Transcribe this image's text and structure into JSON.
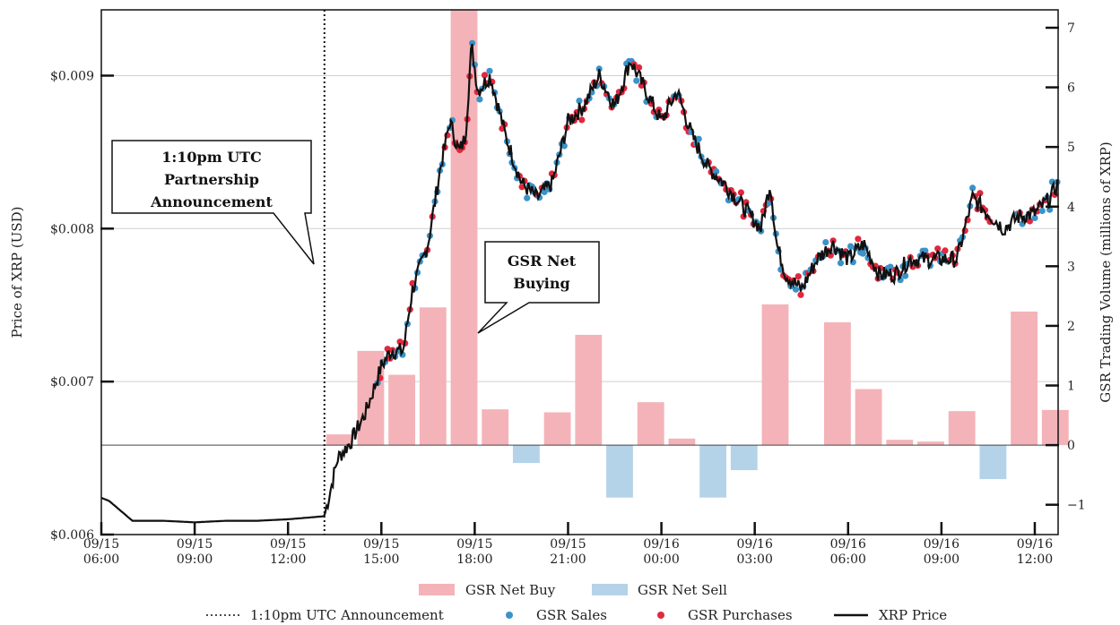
{
  "chart_data": {
    "type": "bar+line+scatter",
    "y_left": {
      "label": "Price of XRP (USD)",
      "range": [
        0.006,
        0.00943
      ],
      "ticks": [
        0.006,
        0.007,
        0.008,
        0.009
      ],
      "tick_labels": [
        "$0.006",
        "$0.007",
        "$0.008",
        "$0.009"
      ]
    },
    "y_right": {
      "label": "GSR Trading Volume (millions of XRP)",
      "range": [
        -1.5,
        7.3
      ],
      "ticks": [
        -1,
        0,
        1,
        2,
        3,
        4,
        5,
        6,
        7
      ],
      "tick_labels": [
        "−1",
        "0",
        "1",
        "2",
        "3",
        "4",
        "5",
        "6",
        "7"
      ]
    },
    "x_axis": {
      "range_hours": [
        6.0,
        36.75
      ],
      "ticks_hours": [
        6,
        9,
        12,
        15,
        18,
        21,
        24,
        27,
        30,
        33,
        36
      ],
      "tick_labels": [
        [
          "09/15",
          "06:00"
        ],
        [
          "09/15",
          "09:00"
        ],
        [
          "09/15",
          "12:00"
        ],
        [
          "09/15",
          "15:00"
        ],
        [
          "09/15",
          "18:00"
        ],
        [
          "09/15",
          "21:00"
        ],
        [
          "09/16",
          "00:00"
        ],
        [
          "09/16",
          "03:00"
        ],
        [
          "09/16",
          "06:00"
        ],
        [
          "09/16",
          "09:00"
        ],
        [
          "09/16",
          "12:00"
        ]
      ]
    },
    "announcement_time": 13.17,
    "bars_net_buy": [
      {
        "t": 13.17,
        "v": 0.18
      },
      {
        "t": 14.17,
        "v": 1.58
      },
      {
        "t": 15.17,
        "v": 1.18
      },
      {
        "t": 16.17,
        "v": 2.31
      },
      {
        "t": 17.17,
        "v": 7.3
      },
      {
        "t": 18.17,
        "v": 0.6
      },
      {
        "t": 20.17,
        "v": 0.55
      },
      {
        "t": 21.17,
        "v": 1.85
      },
      {
        "t": 23.17,
        "v": 0.72
      },
      {
        "t": 24.17,
        "v": 0.11
      },
      {
        "t": 27.17,
        "v": 2.36
      },
      {
        "t": 29.17,
        "v": 2.06
      },
      {
        "t": 30.17,
        "v": 0.94
      },
      {
        "t": 31.17,
        "v": 0.09
      },
      {
        "t": 32.17,
        "v": 0.06
      },
      {
        "t": 33.17,
        "v": 0.57
      },
      {
        "t": 35.17,
        "v": 2.24
      },
      {
        "t": 36.17,
        "v": 0.59
      }
    ],
    "bars_net_sell": [
      {
        "t": 19.17,
        "v": -0.3
      },
      {
        "t": 22.17,
        "v": -0.88
      },
      {
        "t": 25.17,
        "v": -0.88
      },
      {
        "t": 26.17,
        "v": -0.42
      },
      {
        "t": 34.17,
        "v": -0.57
      }
    ],
    "price_keypoints": [
      [
        6.0,
        0.00624
      ],
      [
        6.25,
        0.00622
      ],
      [
        7.0,
        0.00609
      ],
      [
        8.0,
        0.00609
      ],
      [
        9.0,
        0.00608
      ],
      [
        10.0,
        0.00609
      ],
      [
        11.0,
        0.00609
      ],
      [
        12.0,
        0.0061
      ],
      [
        12.6,
        0.00611
      ],
      [
        13.17,
        0.00612
      ],
      [
        13.6,
        0.0065
      ],
      [
        14.0,
        0.0066
      ],
      [
        14.5,
        0.0068
      ],
      [
        15.0,
        0.0071
      ],
      [
        15.3,
        0.0072
      ],
      [
        15.7,
        0.0072
      ],
      [
        16.0,
        0.0076
      ],
      [
        16.5,
        0.0079
      ],
      [
        16.9,
        0.0084
      ],
      [
        17.2,
        0.0087
      ],
      [
        17.5,
        0.0085
      ],
      [
        17.7,
        0.0086
      ],
      [
        17.9,
        0.0092
      ],
      [
        18.1,
        0.0089
      ],
      [
        18.5,
        0.009
      ],
      [
        19.0,
        0.0086
      ],
      [
        19.5,
        0.0083
      ],
      [
        20.0,
        0.0082
      ],
      [
        20.5,
        0.0083
      ],
      [
        21.0,
        0.0087
      ],
      [
        21.5,
        0.0088
      ],
      [
        22.0,
        0.009
      ],
      [
        22.5,
        0.0088
      ],
      [
        23.0,
        0.0091
      ],
      [
        23.5,
        0.0089
      ],
      [
        24.0,
        0.0087
      ],
      [
        24.5,
        0.0089
      ],
      [
        25.0,
        0.0086
      ],
      [
        25.5,
        0.0084
      ],
      [
        26.0,
        0.0083
      ],
      [
        26.4,
        0.0082
      ],
      [
        26.8,
        0.0081
      ],
      [
        27.2,
        0.008
      ],
      [
        27.5,
        0.0083
      ],
      [
        27.7,
        0.0079
      ],
      [
        28.0,
        0.0077
      ],
      [
        28.5,
        0.0076
      ],
      [
        29.0,
        0.0078
      ],
      [
        29.5,
        0.0079
      ],
      [
        30.0,
        0.0078
      ],
      [
        30.5,
        0.0079
      ],
      [
        31.0,
        0.0077
      ],
      [
        31.5,
        0.0077
      ],
      [
        32.0,
        0.0078
      ],
      [
        32.5,
        0.0078
      ],
      [
        33.0,
        0.0078
      ],
      [
        33.5,
        0.0078
      ],
      [
        34.0,
        0.0082
      ],
      [
        34.5,
        0.0081
      ],
      [
        35.0,
        0.008
      ],
      [
        35.5,
        0.00808
      ],
      [
        36.0,
        0.0081
      ],
      [
        36.5,
        0.0082
      ],
      [
        36.75,
        0.0083
      ]
    ],
    "callouts": [
      {
        "lines": [
          "1:10pm UTC",
          "Partnership",
          "Announcement"
        ]
      },
      {
        "lines": [
          "GSR Net",
          "Buying"
        ]
      }
    ],
    "legend": {
      "placement": "bottom",
      "row1": [
        "GSR Net Buy",
        "GSR Net Sell"
      ],
      "row2": [
        "1:10pm UTC Announcement",
        "GSR Sales",
        "GSR Purchases",
        "XRP Price"
      ]
    },
    "colors": {
      "net_buy": "#f4b3b8",
      "net_sell": "#b5d3e8",
      "sales": "#3a93c9",
      "purchases": "#e0283e",
      "price": "#111111"
    }
  }
}
